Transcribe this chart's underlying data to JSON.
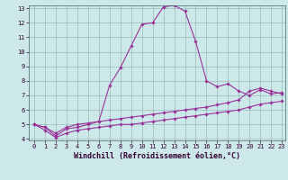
{
  "xlabel": "Windchill (Refroidissement éolien,°C)",
  "ylabel": "",
  "bg_color": "#cce8e8",
  "line_color": "#993399",
  "grid_color": "#99bbbb",
  "xmin": 0,
  "xmax": 23,
  "ymin": 4,
  "ymax": 13,
  "x": [
    0,
    1,
    2,
    3,
    4,
    5,
    6,
    7,
    8,
    9,
    10,
    11,
    12,
    13,
    14,
    15,
    16,
    17,
    18,
    19,
    20,
    21,
    22,
    23
  ],
  "line1": [
    5.0,
    4.8,
    4.2,
    4.7,
    4.8,
    5.0,
    5.2,
    7.7,
    8.9,
    10.4,
    11.9,
    12.0,
    13.1,
    13.2,
    12.8,
    10.7,
    8.0,
    7.6,
    7.8,
    7.3,
    7.0,
    7.4,
    7.1,
    7.2
  ],
  "line2": [
    5.0,
    4.8,
    4.4,
    4.8,
    5.0,
    5.1,
    5.2,
    5.3,
    5.4,
    5.5,
    5.6,
    5.7,
    5.8,
    5.9,
    6.0,
    6.1,
    6.2,
    6.35,
    6.5,
    6.7,
    7.3,
    7.5,
    7.3,
    7.1
  ],
  "line3": [
    5.0,
    4.6,
    4.1,
    4.4,
    4.6,
    4.7,
    4.8,
    4.9,
    5.0,
    5.0,
    5.1,
    5.2,
    5.3,
    5.4,
    5.5,
    5.6,
    5.7,
    5.8,
    5.9,
    6.0,
    6.2,
    6.4,
    6.5,
    6.6
  ],
  "xticks": [
    0,
    1,
    2,
    3,
    4,
    5,
    6,
    7,
    8,
    9,
    10,
    11,
    12,
    13,
    14,
    15,
    16,
    17,
    18,
    19,
    20,
    21,
    22,
    23
  ],
  "yticks": [
    4,
    5,
    6,
    7,
    8,
    9,
    10,
    11,
    12,
    13
  ],
  "tick_fontsize": 5.0,
  "xlabel_fontsize": 6.0,
  "marker": "D",
  "markersize": 1.8,
  "linewidth": 0.8
}
